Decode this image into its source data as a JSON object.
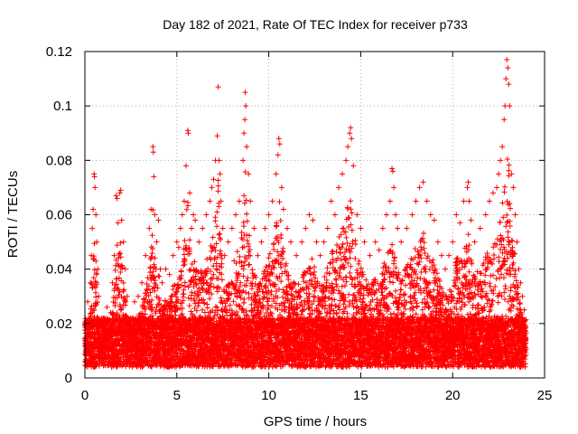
{
  "chart_data": {
    "type": "scatter",
    "title": "Day 182 of 2021, Rate Of TEC Index for receiver p733",
    "xlabel": "GPS time / hours",
    "ylabel": "ROTI / TECUs",
    "xlim": [
      0,
      25
    ],
    "ylim": [
      0,
      0.12
    ],
    "xticks": [
      0,
      5,
      10,
      15,
      20,
      25
    ],
    "yticks": [
      0,
      0.02,
      0.04,
      0.06,
      0.08,
      0.1,
      0.12
    ],
    "xtick_labels": [
      "0",
      "5",
      "10",
      "15",
      "20",
      "25"
    ],
    "ytick_labels": [
      "0",
      "0.02",
      "0.04",
      "0.06",
      "0.08",
      "0.1",
      "0.12"
    ],
    "grid": true,
    "marker": "plus",
    "color": "#ff0000",
    "series": [
      {
        "points": [
          [
            0.05,
            0.012
          ],
          [
            0.1,
            0.02
          ],
          [
            0.15,
            0.028
          ],
          [
            0.2,
            0.018
          ],
          [
            0.25,
            0.009
          ],
          [
            0.3,
            0.035
          ],
          [
            0.35,
            0.045
          ],
          [
            0.4,
            0.055
          ],
          [
            0.45,
            0.062
          ],
          [
            0.5,
            0.075
          ],
          [
            0.52,
            0.074
          ],
          [
            0.55,
            0.07
          ],
          [
            0.6,
            0.06
          ],
          [
            0.65,
            0.05
          ],
          [
            0.7,
            0.04
          ],
          [
            0.75,
            0.03
          ],
          [
            0.8,
            0.02
          ],
          [
            0.9,
            0.016
          ],
          [
            1.0,
            0.012
          ],
          [
            1.1,
            0.02
          ],
          [
            1.2,
            0.026
          ],
          [
            1.3,
            0.018
          ],
          [
            1.4,
            0.024
          ],
          [
            1.5,
            0.035
          ],
          [
            1.6,
            0.045
          ],
          [
            1.7,
            0.067
          ],
          [
            1.75,
            0.066
          ],
          [
            1.8,
            0.057
          ],
          [
            1.9,
            0.068
          ],
          [
            1.95,
            0.069
          ],
          [
            2.0,
            0.058
          ],
          [
            2.1,
            0.05
          ],
          [
            2.2,
            0.04
          ],
          [
            2.3,
            0.03
          ],
          [
            2.5,
            0.022
          ],
          [
            2.7,
            0.028
          ],
          [
            2.9,
            0.03
          ],
          [
            3.1,
            0.035
          ],
          [
            3.3,
            0.045
          ],
          [
            3.5,
            0.055
          ],
          [
            3.6,
            0.062
          ],
          [
            3.7,
            0.085
          ],
          [
            3.72,
            0.083
          ],
          [
            3.75,
            0.074
          ],
          [
            3.8,
            0.06
          ],
          [
            3.9,
            0.05
          ],
          [
            4.0,
            0.058
          ],
          [
            4.1,
            0.04
          ],
          [
            4.2,
            0.035
          ],
          [
            4.4,
            0.04
          ],
          [
            4.6,
            0.038
          ],
          [
            4.8,
            0.045
          ],
          [
            5.0,
            0.05
          ],
          [
            5.1,
            0.048
          ],
          [
            5.2,
            0.055
          ],
          [
            5.3,
            0.06
          ],
          [
            5.4,
            0.065
          ],
          [
            5.5,
            0.078
          ],
          [
            5.6,
            0.091
          ],
          [
            5.62,
            0.09
          ],
          [
            5.7,
            0.068
          ],
          [
            5.8,
            0.055
          ],
          [
            5.9,
            0.06
          ],
          [
            6.0,
            0.058
          ],
          [
            6.2,
            0.05
          ],
          [
            6.4,
            0.055
          ],
          [
            6.6,
            0.06
          ],
          [
            6.8,
            0.065
          ],
          [
            6.9,
            0.07
          ],
          [
            7.0,
            0.073
          ],
          [
            7.1,
            0.08
          ],
          [
            7.2,
            0.089
          ],
          [
            7.25,
            0.107
          ],
          [
            7.3,
            0.08
          ],
          [
            7.35,
            0.075
          ],
          [
            7.4,
            0.065
          ],
          [
            7.5,
            0.055
          ],
          [
            7.6,
            0.045
          ],
          [
            7.8,
            0.05
          ],
          [
            8.0,
            0.055
          ],
          [
            8.2,
            0.06
          ],
          [
            8.4,
            0.065
          ],
          [
            8.6,
            0.08
          ],
          [
            8.65,
            0.09
          ],
          [
            8.7,
            0.095
          ],
          [
            8.72,
            0.105
          ],
          [
            8.75,
            0.1
          ],
          [
            8.8,
            0.085
          ],
          [
            8.9,
            0.075
          ],
          [
            9.0,
            0.065
          ],
          [
            9.2,
            0.055
          ],
          [
            9.4,
            0.045
          ],
          [
            9.6,
            0.05
          ],
          [
            9.8,
            0.055
          ],
          [
            10.0,
            0.06
          ],
          [
            10.2,
            0.065
          ],
          [
            10.4,
            0.075
          ],
          [
            10.5,
            0.082
          ],
          [
            10.55,
            0.088
          ],
          [
            10.6,
            0.086
          ],
          [
            10.7,
            0.07
          ],
          [
            10.8,
            0.062
          ],
          [
            11.0,
            0.055
          ],
          [
            11.2,
            0.05
          ],
          [
            11.5,
            0.045
          ],
          [
            11.8,
            0.05
          ],
          [
            12.0,
            0.055
          ],
          [
            12.2,
            0.06
          ],
          [
            12.4,
            0.058
          ],
          [
            12.6,
            0.05
          ],
          [
            12.8,
            0.045
          ],
          [
            13.0,
            0.05
          ],
          [
            13.2,
            0.055
          ],
          [
            13.4,
            0.065
          ],
          [
            13.6,
            0.06
          ],
          [
            13.8,
            0.07
          ],
          [
            14.0,
            0.075
          ],
          [
            14.2,
            0.08
          ],
          [
            14.3,
            0.085
          ],
          [
            14.4,
            0.09
          ],
          [
            14.45,
            0.092
          ],
          [
            14.5,
            0.088
          ],
          [
            14.6,
            0.078
          ],
          [
            14.8,
            0.06
          ],
          [
            15.0,
            0.055
          ],
          [
            15.2,
            0.05
          ],
          [
            15.5,
            0.045
          ],
          [
            15.8,
            0.05
          ],
          [
            16.0,
            0.047
          ],
          [
            16.2,
            0.055
          ],
          [
            16.4,
            0.06
          ],
          [
            16.6,
            0.065
          ],
          [
            16.7,
            0.077
          ],
          [
            16.75,
            0.076
          ],
          [
            16.8,
            0.07
          ],
          [
            16.9,
            0.06
          ],
          [
            17.0,
            0.055
          ],
          [
            17.2,
            0.05
          ],
          [
            17.5,
            0.055
          ],
          [
            17.8,
            0.06
          ],
          [
            18.0,
            0.065
          ],
          [
            18.2,
            0.07
          ],
          [
            18.4,
            0.072
          ],
          [
            18.6,
            0.065
          ],
          [
            18.8,
            0.06
          ],
          [
            19.0,
            0.058
          ],
          [
            19.2,
            0.05
          ],
          [
            19.4,
            0.045
          ],
          [
            19.6,
            0.04
          ],
          [
            19.8,
            0.045
          ],
          [
            20.0,
            0.05
          ],
          [
            20.2,
            0.06
          ],
          [
            20.4,
            0.057
          ],
          [
            20.6,
            0.065
          ],
          [
            20.8,
            0.07
          ],
          [
            20.85,
            0.072
          ],
          [
            20.9,
            0.065
          ],
          [
            21.0,
            0.058
          ],
          [
            21.2,
            0.05
          ],
          [
            21.5,
            0.055
          ],
          [
            21.8,
            0.06
          ],
          [
            22.0,
            0.065
          ],
          [
            22.2,
            0.068
          ],
          [
            22.4,
            0.07
          ],
          [
            22.5,
            0.075
          ],
          [
            22.6,
            0.08
          ],
          [
            22.7,
            0.085
          ],
          [
            22.8,
            0.095
          ],
          [
            22.85,
            0.1
          ],
          [
            22.9,
            0.11
          ],
          [
            22.95,
            0.117
          ],
          [
            23.0,
            0.114
          ],
          [
            23.05,
            0.108
          ],
          [
            23.1,
            0.1
          ],
          [
            23.2,
            0.075
          ],
          [
            23.3,
            0.07
          ],
          [
            23.4,
            0.06
          ],
          [
            23.5,
            0.05
          ],
          [
            23.6,
            0.04
          ],
          [
            23.7,
            0.035
          ],
          [
            23.8,
            0.03
          ],
          [
            23.9,
            0.025
          ]
        ]
      }
    ]
  }
}
